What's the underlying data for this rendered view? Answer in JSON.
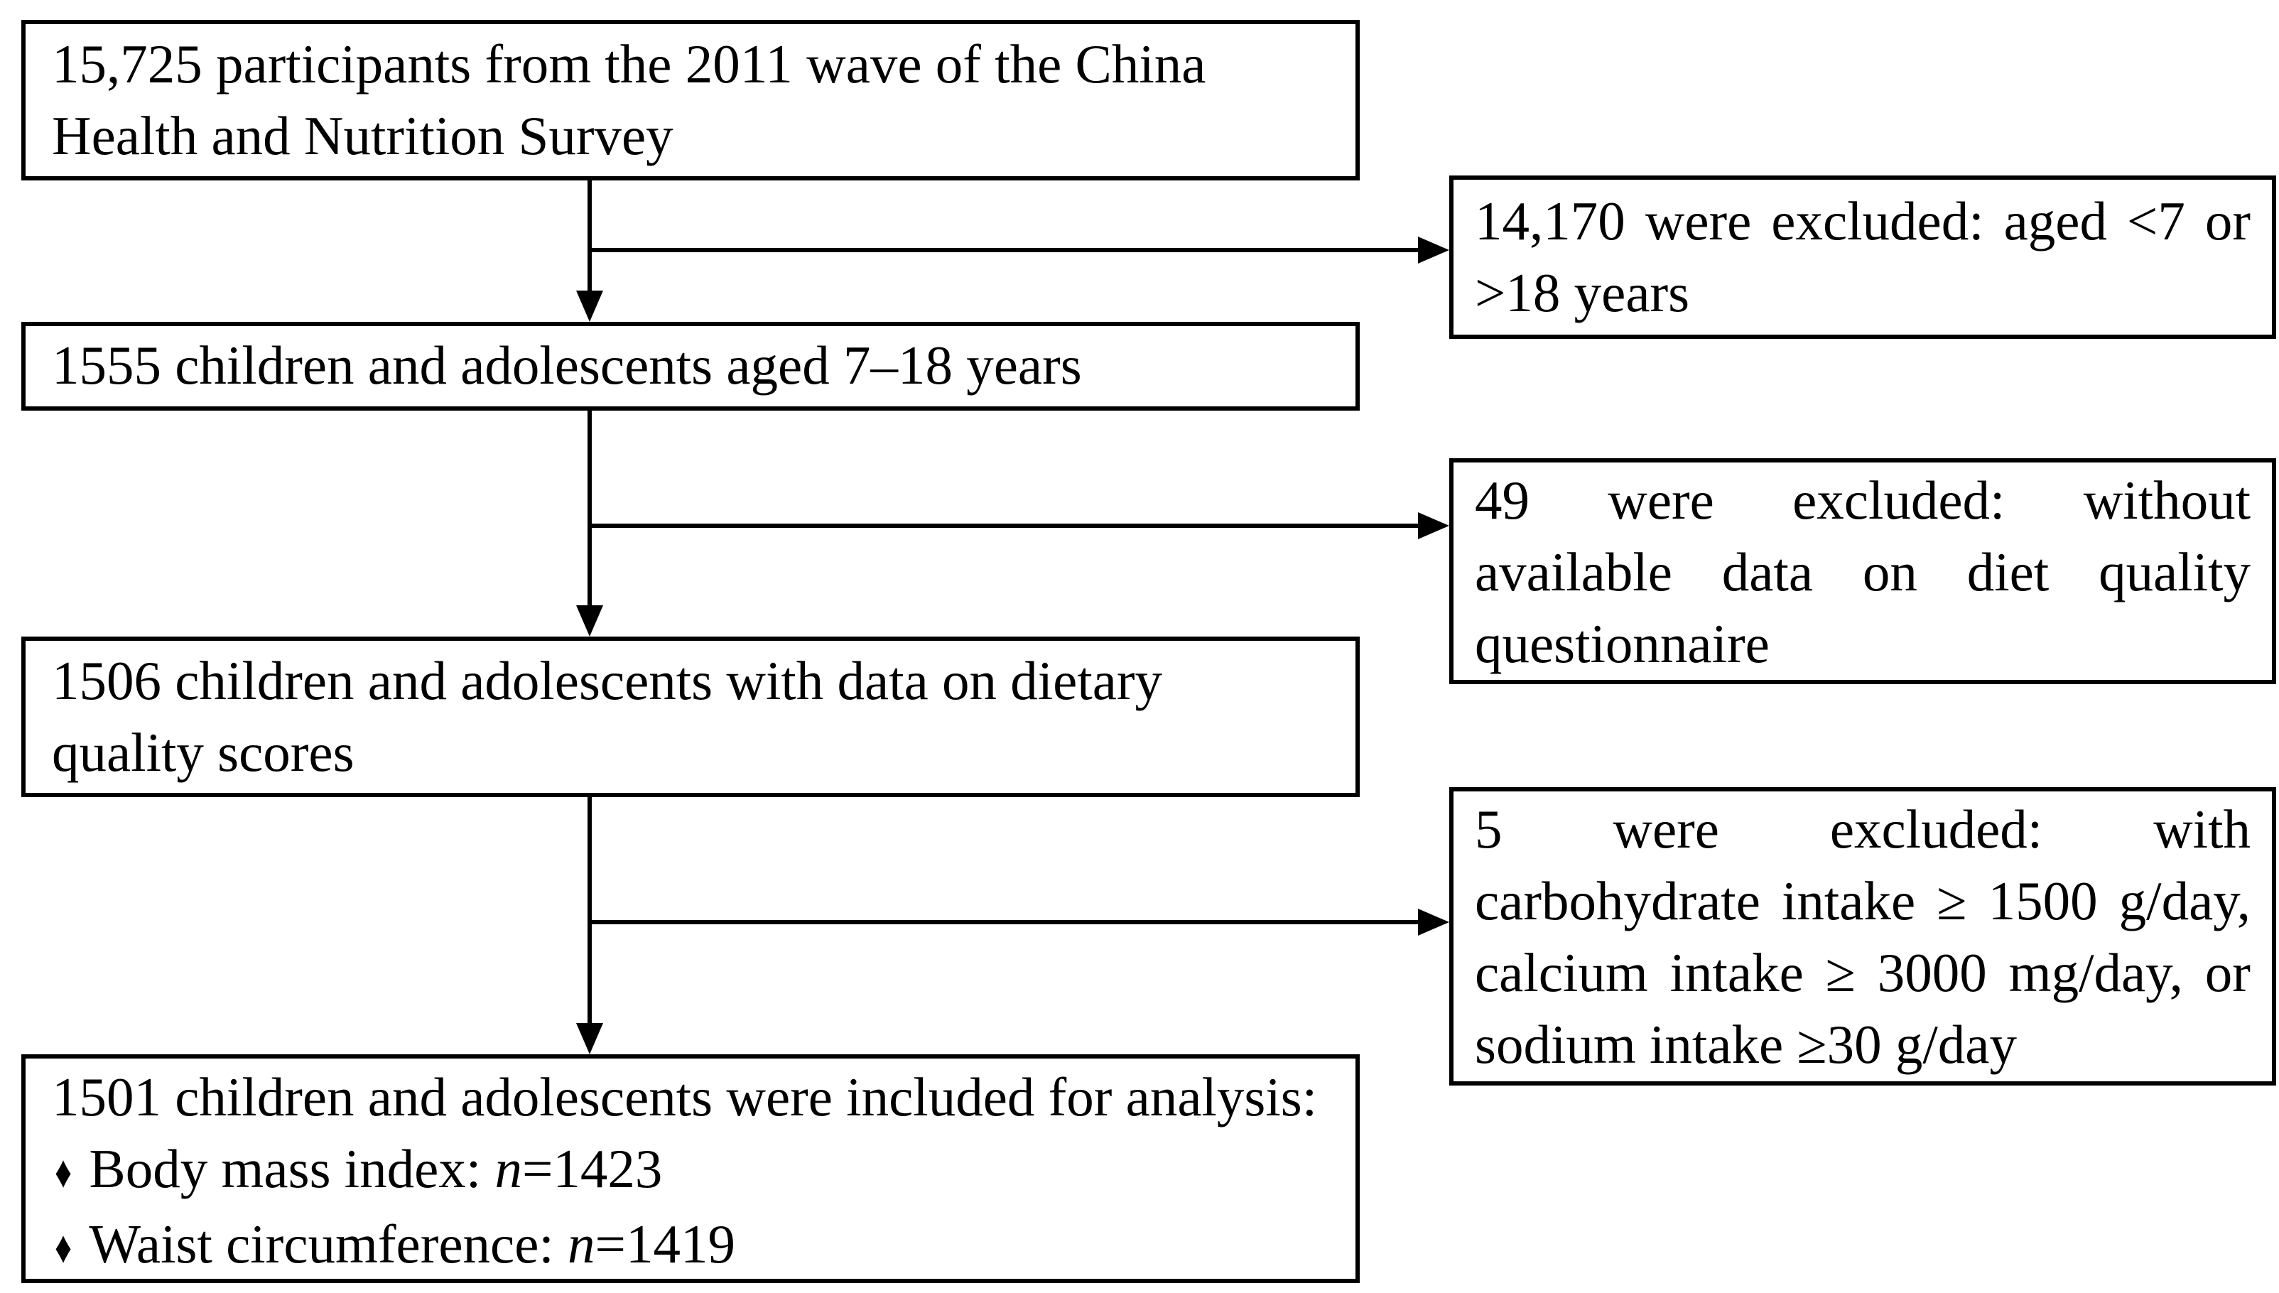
{
  "diagram": {
    "title": "Participant flow chart",
    "background_color": "#ffffff",
    "stroke_color": "#000000"
  },
  "boxes": {
    "participants": {
      "line1": "15,725 participants from the 2011 wave of the China",
      "line2": "Health and Nutrition Survey"
    },
    "aged": {
      "line1": "1555 children and adolescents aged 7–18 years"
    },
    "diet_quality": {
      "line1": "1506 children and adolescents with data on dietary",
      "line2": "quality scores"
    },
    "final": {
      "line1": "1501 children and adolescents were included for analysis:",
      "bullets": [
        {
          "bullet": "♦",
          "prefix": "Body mass index: ",
          "variable": "n",
          "suffix": "=1423"
        },
        {
          "bullet": "♦",
          "prefix": "Waist circumference: ",
          "variable": "n",
          "suffix": "=1419"
        }
      ]
    },
    "excluded_age": {
      "line1": "14,170 were excluded:  aged <7 or",
      "line2": ">18 years"
    },
    "excluded_questionnaire": {
      "line1": "49 were excluded: without",
      "line2": "available data on diet quality",
      "line3": "questionnaire"
    },
    "excluded_intake": {
      "line1": "5 were excluded: with",
      "line2": "carbohydrate intake ≥ 1500 g/day,",
      "line3": "calcium intake ≥ 3000 mg/day, or",
      "line4": "sodium intake ≥30 g/day"
    }
  }
}
